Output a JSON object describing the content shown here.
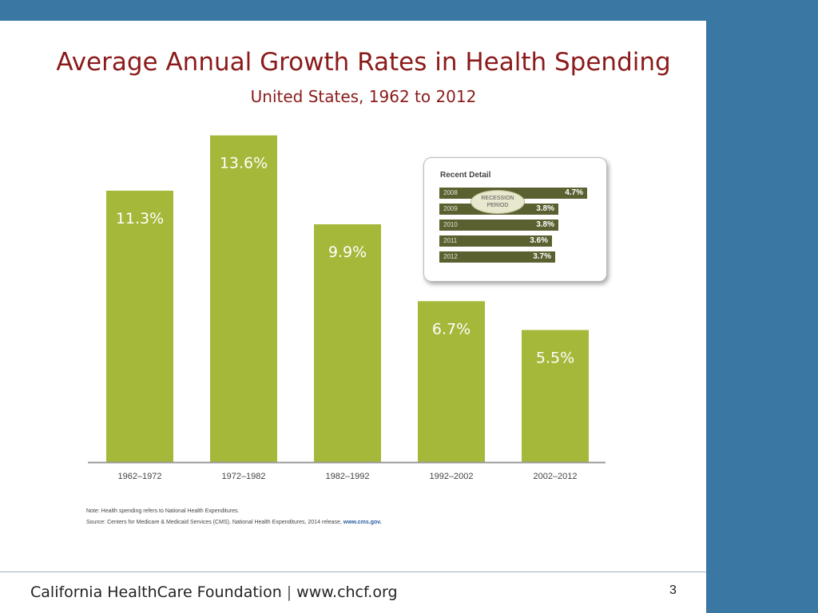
{
  "slide": {
    "title": "Average Annual Growth Rates in Health Spending",
    "subtitle": "United States, 1962 to 2012",
    "footer_org": "California HealthCare Foundation",
    "footer_sep": "|",
    "footer_url": "www.chcf.org",
    "page_number": "3"
  },
  "notes": {
    "note": "Note: Health spending refers to National Health Expenditures.",
    "source": "Source: Centers for Medicare & Medicaid Services (CMS), National Health Expenditures, 2014 release,",
    "source_url": "www.cms.gov."
  },
  "colors": {
    "bar": "#a6b83a",
    "accent": "#8b1a1a",
    "frame": "#3a78a3",
    "inset_bar": "#5b6031"
  },
  "chart_data": [
    {
      "type": "bar",
      "title": "Average Annual Growth Rates in Health Spending",
      "subtitle": "United States, 1962 to 2012",
      "categories": [
        "1962–1972",
        "1972–1982",
        "1982–1992",
        "1992–2002",
        "2002–2012"
      ],
      "values": [
        11.3,
        13.6,
        9.9,
        6.7,
        5.5
      ],
      "labels": [
        "11.3%",
        "13.6%",
        "9.9%",
        "6.7%",
        "5.5%"
      ],
      "ylim": [
        0,
        16.5
      ],
      "grid": false,
      "legend": "none"
    },
    {
      "type": "bar",
      "orientation": "horizontal",
      "title": "Recent Detail",
      "categories": [
        "2008",
        "2009",
        "2010",
        "2011",
        "2012"
      ],
      "values": [
        4.7,
        3.8,
        3.8,
        3.6,
        3.7
      ],
      "labels": [
        "4.7%",
        "3.8%",
        "3.8%",
        "3.6%",
        "3.7%"
      ],
      "annotation": "RECESSION PERIOD"
    }
  ]
}
